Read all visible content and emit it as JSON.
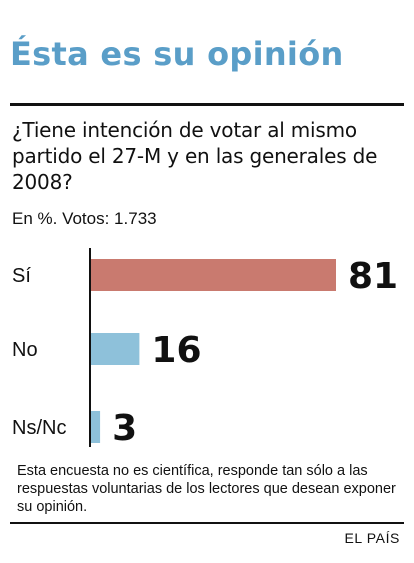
{
  "header": {
    "title": "Ésta es su opinión",
    "title_color": "#5a9ec8"
  },
  "question": "¿Tiene intención de votar al mismo partido el 27-M y en las generales de 2008?",
  "meta": "En %. Votos: 1.733",
  "chart_data": {
    "type": "bar",
    "orientation": "horizontal",
    "categories": [
      "Sí",
      "No",
      "Ns/Nc"
    ],
    "values": [
      81,
      16,
      3
    ],
    "colors": [
      "#c97a6f",
      "#8ec1da",
      "#8ec1da"
    ],
    "data_labels": [
      "81",
      "16",
      "3"
    ],
    "title": "",
    "xlabel": "",
    "ylabel": "",
    "xlim": [
      0,
      81
    ],
    "grid": false,
    "legend": "none"
  },
  "note": "Esta encuesta no es científica, responde tan sólo a las respuestas voluntarias de los lectores que desean exponer su opinión.",
  "credit": "EL PAÍS"
}
